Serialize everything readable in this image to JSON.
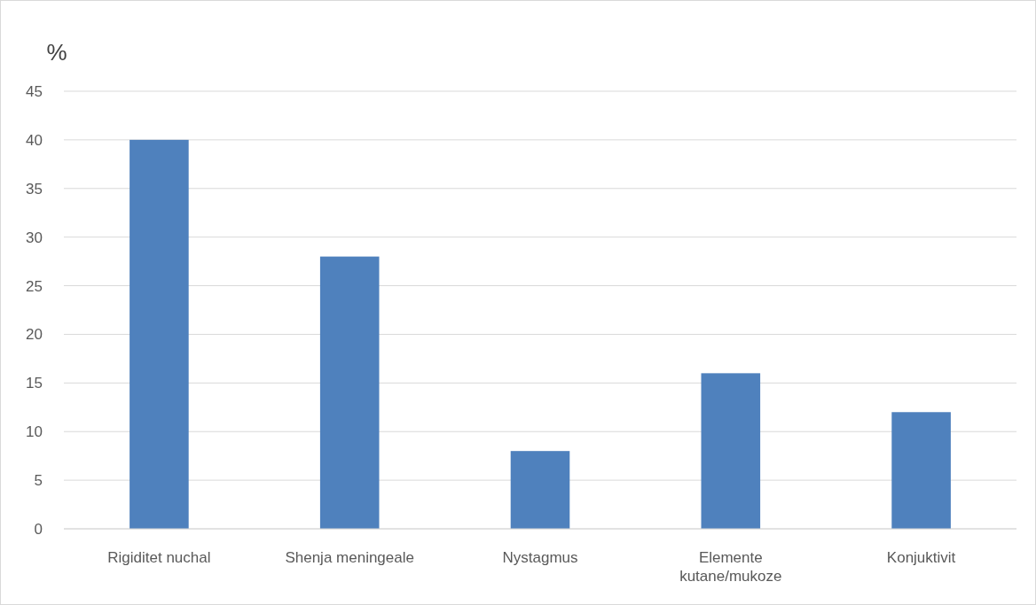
{
  "chart_data": {
    "type": "bar",
    "ylabel": "%",
    "categories": [
      "Rigiditet nuchal",
      "Shenja meningeale",
      "Nystagmus",
      "Elemente kutane/mukoze",
      "Konjuktivit"
    ],
    "values": [
      40,
      28,
      8,
      16,
      12
    ],
    "color": "#4f81bd",
    "ylim": [
      0,
      45
    ],
    "yticks": [
      0,
      5,
      10,
      15,
      20,
      25,
      30,
      35,
      40,
      45
    ],
    "grid": "y"
  }
}
